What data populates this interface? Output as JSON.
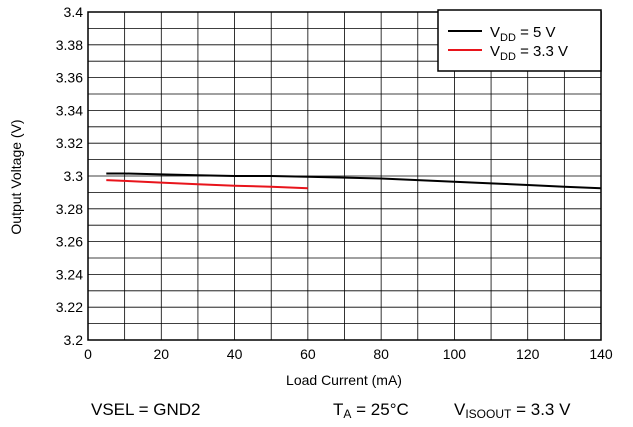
{
  "chart_data": {
    "type": "line",
    "xlabel": "Load Current (mA)",
    "ylabel": "Output Voltage (V)",
    "xlim": [
      0,
      140
    ],
    "ylim": [
      3.2,
      3.4
    ],
    "x_ticks": [
      "0",
      "20",
      "40",
      "60",
      "80",
      "100",
      "120",
      "140"
    ],
    "y_ticks": [
      "3.2",
      "3.22",
      "3.24",
      "3.26",
      "3.28",
      "3.3",
      "3.32",
      "3.34",
      "3.36",
      "3.38",
      "3.4"
    ],
    "grid": true,
    "legend_position": "top-right",
    "series": [
      {
        "name": "VDD = 5 V",
        "name_main": "V",
        "name_sub": "DD",
        "name_rest": " = 5 V",
        "color": "#000000",
        "x": [
          5,
          10,
          20,
          30,
          40,
          50,
          60,
          70,
          80,
          90,
          100,
          110,
          120,
          130,
          140
        ],
        "y": [
          3.3015,
          3.3015,
          3.301,
          3.3005,
          3.3,
          3.3,
          3.2995,
          3.299,
          3.2985,
          3.2975,
          3.2965,
          3.2955,
          3.2945,
          3.2935,
          3.2925
        ]
      },
      {
        "name": "VDD = 3.3 V",
        "name_main": "V",
        "name_sub": "DD",
        "name_rest": " = 3.3 V",
        "color": "#e8141b",
        "x": [
          5,
          10,
          20,
          30,
          40,
          50,
          60
        ],
        "y": [
          3.2975,
          3.297,
          3.296,
          3.295,
          3.294,
          3.2935,
          3.2925
        ]
      }
    ]
  },
  "conditions": {
    "vsel": "VSEL = GND2",
    "ta_main": "T",
    "ta_sub": "A",
    "ta_rest": " = 25°C",
    "viso_main": "V",
    "viso_sub": "ISOOUT",
    "viso_rest": " = 3.3 V"
  }
}
